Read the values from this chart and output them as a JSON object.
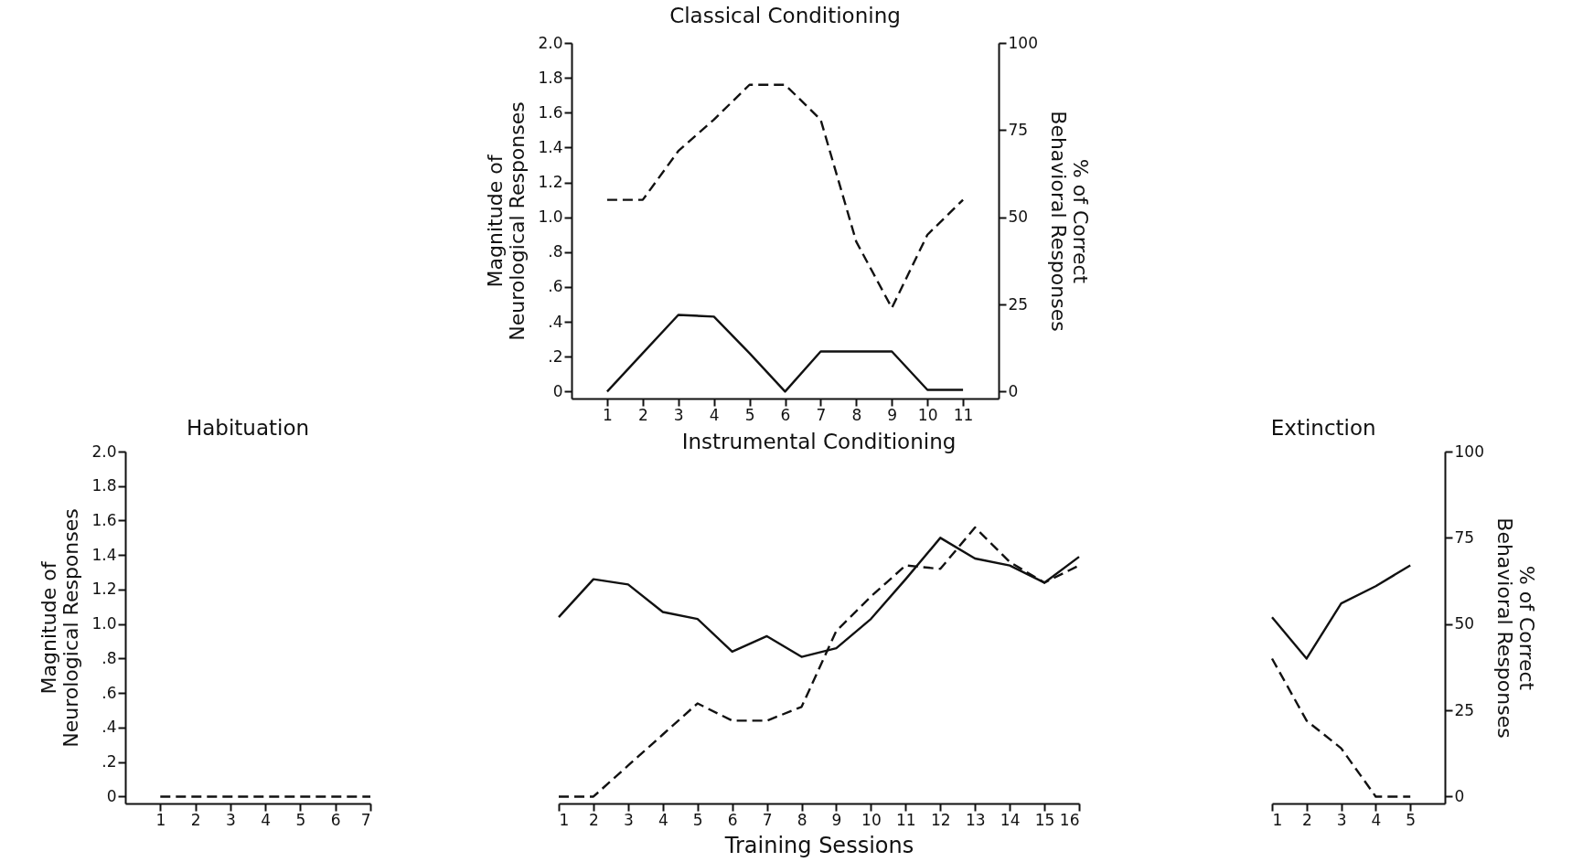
{
  "chart_data": [
    {
      "type": "line",
      "title": "Classical Conditioning",
      "ylabel": "Magnitude of\nNeurological Responses",
      "y2label": "% of Correct\nBehavioral Responses",
      "x": [
        1,
        2,
        3,
        4,
        5,
        6,
        7,
        8,
        9,
        10,
        11
      ],
      "xlim": [
        0,
        12
      ],
      "xticks": [
        1,
        2,
        3,
        4,
        5,
        6,
        7,
        8,
        9,
        10,
        11
      ],
      "ylim": [
        -0.04,
        2.0
      ],
      "yticks": [
        0,
        {
          "value": 0.2,
          "label": ".2"
        },
        {
          "value": 0.4,
          "label": ".4"
        },
        {
          "value": 0.6,
          "label": ".6"
        },
        {
          "value": 0.8,
          "label": ".8"
        },
        {
          "value": 1.0,
          "label": "1.0"
        },
        1.2,
        1.4,
        1.6,
        1.8,
        {
          "value": 2.0,
          "label": "2.0"
        }
      ],
      "y2lim": [
        -2,
        100
      ],
      "y2ticks": [
        0,
        25,
        50,
        75,
        100
      ],
      "grid": false,
      "series": [
        {
          "color": "#111111",
          "line_style": "solid",
          "values": [
            0,
            0.22,
            0.44,
            0.43,
            0.22,
            0,
            0.23,
            0.23,
            0.23,
            0.01,
            0.01
          ]
        },
        {
          "color": "#111111",
          "line_style": "dashed",
          "axis": "y2",
          "values": [
            55,
            55,
            69,
            78,
            88,
            88,
            78,
            43,
            24,
            45,
            55
          ]
        }
      ]
    },
    {
      "type": "line",
      "title": "Habituation",
      "ylabel": "Magnitude of\nNeurological Responses",
      "x": [
        1,
        2,
        3,
        4,
        5,
        6,
        7
      ],
      "xlim": [
        0,
        7
      ],
      "xticks": [
        1,
        2,
        3,
        4,
        5,
        6,
        7
      ],
      "ylim": [
        -0.04,
        2.0
      ],
      "yticks": [
        0,
        {
          "value": 0.2,
          "label": ".2"
        },
        {
          "value": 0.4,
          "label": ".4"
        },
        {
          "value": 0.6,
          "label": ".6"
        },
        {
          "value": 0.8,
          "label": ".8"
        },
        {
          "value": 1.0,
          "label": "1.0"
        },
        1.2,
        1.4,
        1.6,
        1.8,
        {
          "value": 2.0,
          "label": "2.0"
        }
      ],
      "grid": false,
      "series": [
        {
          "color": "#111111",
          "line_style": "dashed",
          "values": [
            0,
            0,
            0,
            0,
            0,
            0,
            0
          ]
        }
      ]
    },
    {
      "type": "line",
      "title": "Instrumental Conditioning",
      "xlabel": "Training Sessions",
      "x": [
        1,
        2,
        3,
        4,
        5,
        6,
        7,
        8,
        9,
        10,
        11,
        12,
        13,
        14,
        15,
        16
      ],
      "xlim": [
        1,
        16
      ],
      "xticks": [
        1,
        2,
        3,
        4,
        5,
        6,
        7,
        8,
        9,
        10,
        11,
        12,
        13,
        14,
        15,
        16
      ],
      "ylim": [
        -0.04,
        2.0
      ],
      "y2lim": [
        -2,
        100
      ],
      "tick_labels": "x",
      "grid": false,
      "series": [
        {
          "color": "#111111",
          "line_style": "solid",
          "values": [
            1.04,
            1.26,
            1.23,
            1.07,
            1.03,
            0.84,
            0.93,
            0.81,
            0.86,
            1.03,
            1.26,
            1.5,
            1.38,
            1.34,
            1.24,
            1.39
          ]
        },
        {
          "color": "#111111",
          "line_style": "dashed",
          "axis": "y2",
          "values": [
            0,
            0,
            9,
            18,
            27,
            22,
            22,
            26,
            48,
            58,
            67,
            66,
            78,
            68,
            62,
            67
          ]
        }
      ]
    },
    {
      "type": "line",
      "title": "Extinction",
      "y2label": "% of Correct\nBehavioral Responses",
      "x": [
        1,
        2,
        3,
        4,
        5
      ],
      "xlim": [
        1,
        6
      ],
      "xticks": [
        1,
        2,
        3,
        4,
        5
      ],
      "ylim": [
        -0.04,
        2.0
      ],
      "y2lim": [
        -2,
        100
      ],
      "y2ticks": [
        0,
        25,
        50,
        75,
        100
      ],
      "tick_labels": [
        "x",
        "y2"
      ],
      "grid": false,
      "series": [
        {
          "color": "#111111",
          "line_style": "solid",
          "values": [
            1.04,
            0.8,
            1.12,
            1.22,
            1.34
          ]
        },
        {
          "color": "#111111",
          "line_style": "dashed",
          "axis": "y2",
          "values": [
            40,
            22,
            14,
            0,
            0
          ]
        }
      ]
    }
  ]
}
